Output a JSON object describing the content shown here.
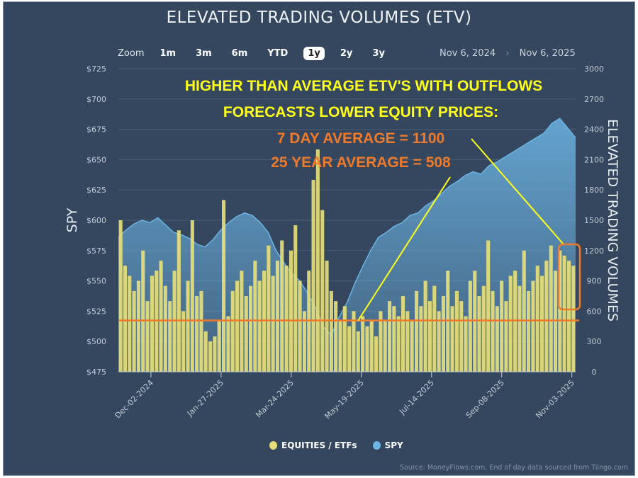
{
  "header": {
    "title": "ELEVATED TRADING VOLUMES (ETV)"
  },
  "zoom": {
    "label": "Zoom",
    "buttons": [
      "1m",
      "3m",
      "6m",
      "YTD",
      "1y",
      "2y",
      "3y"
    ],
    "active": "1y"
  },
  "range": {
    "from": "Nov 6, 2024",
    "separator": "›",
    "to": "Nov 6, 2025"
  },
  "annotations": {
    "line1": "HIGHER THAN AVERAGE ETV'S WITH OUTFLOWS",
    "line2": "FORECASTS LOWER EQUITY PRICES:",
    "line3": "7 DAY AVERAGE = 1100",
    "line4": "25 YEAR AVERAGE = 508"
  },
  "source": "Source: MoneyFlows.com, End of day data sourced from Tiingo.com",
  "colors": {
    "background": "#34475e",
    "bars": "#e6de7a",
    "spy": "#6cb4e4",
    "average_line": "#f07a2a",
    "annotation_yellow": "#ffff1a",
    "annotation_orange": "#f07a2a"
  },
  "chart_data": {
    "type": "bar+area",
    "title": "ELEVATED TRADING VOLUMES (ETV)",
    "x_range": [
      "2024-11-06",
      "2025-11-06"
    ],
    "x_ticks": [
      "Dec-02-2024",
      "Jan-27-2025",
      "Mar-24-2025",
      "May-19-2025",
      "Jul-14-2025",
      "Sep-08-2025",
      "Nov-03-2025"
    ],
    "y_left": {
      "label": "SPY",
      "range": [
        475,
        725
      ],
      "ticks": [
        "$475",
        "$500",
        "$525",
        "$550",
        "$575",
        "$600",
        "$625",
        "$650",
        "$675",
        "$700",
        "$725"
      ]
    },
    "y_right": {
      "label": "ELEVATED TRADING VOLUMES",
      "range": [
        0,
        3000
      ],
      "ticks": [
        "0",
        "300",
        "600",
        "900",
        "1200",
        "1500",
        "1800",
        "2100",
        "2400",
        "2700",
        "3000"
      ]
    },
    "grid": true,
    "legend_placement": "bottom",
    "average_line": 508,
    "series": [
      {
        "name": "EQUITIES / ETFs",
        "type": "bar",
        "values": [
          1500,
          1050,
          950,
          800,
          900,
          1200,
          700,
          950,
          1000,
          1100,
          850,
          700,
          1000,
          1400,
          600,
          900,
          1500,
          750,
          800,
          400,
          300,
          350,
          500,
          1700,
          550,
          800,
          900,
          1000,
          750,
          850,
          1100,
          900,
          1000,
          1250,
          950,
          1100,
          1300,
          1050,
          1200,
          1450,
          900,
          600,
          1000,
          1900,
          2200,
          1600,
          1100,
          800,
          700,
          500,
          650,
          450,
          600,
          400,
          550,
          450,
          500,
          350,
          600,
          500,
          700,
          650,
          550,
          750,
          600,
          500,
          800,
          650,
          900,
          700,
          850,
          600,
          750,
          1000,
          650,
          800,
          700,
          550,
          900,
          1000,
          750,
          850,
          1300,
          800,
          650,
          900,
          700,
          950,
          1000,
          850,
          1200,
          800,
          900,
          1050,
          950,
          1100,
          1250,
          1000,
          1200,
          1150,
          1100,
          1050
        ]
      },
      {
        "name": "SPY",
        "type": "area",
        "values": [
          586,
          592,
          597,
          600,
          598,
          602,
          596,
          590,
          588,
          585,
          580,
          578,
          584,
          592,
          598,
          603,
          606,
          604,
          598,
          590,
          575,
          565,
          556,
          550,
          540,
          528,
          512,
          505,
          520,
          532,
          548,
          562,
          575,
          586,
          590,
          595,
          598,
          604,
          606,
          612,
          616,
          622,
          628,
          632,
          637,
          640,
          638,
          645,
          648,
          652,
          656,
          660,
          664,
          668,
          672,
          680,
          684,
          676,
          668
        ]
      }
    ]
  }
}
